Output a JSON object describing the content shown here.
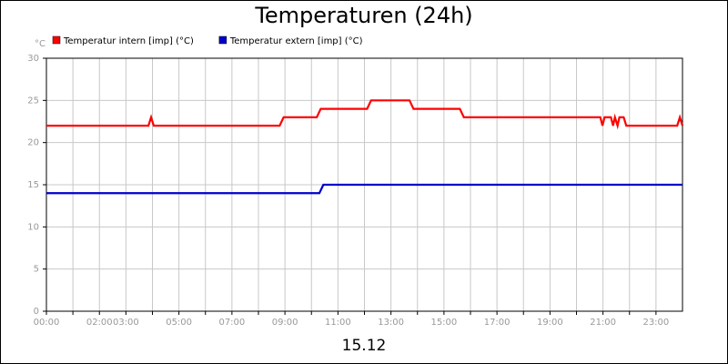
{
  "chart_data": {
    "type": "line",
    "title": "Temperaturen (24h)",
    "x_label": "15.12",
    "y_unit": "°C",
    "xlim": [
      0,
      24
    ],
    "xticks": [
      {
        "value": 0,
        "label": "00:00"
      },
      {
        "value": 2,
        "label": "02:00"
      },
      {
        "value": 3,
        "label": "03:00"
      },
      {
        "value": 5,
        "label": "05:00"
      },
      {
        "value": 7,
        "label": "07:00"
      },
      {
        "value": 9,
        "label": "09:00"
      },
      {
        "value": 11,
        "label": "11:00"
      },
      {
        "value": 13,
        "label": "13:00"
      },
      {
        "value": 15,
        "label": "15:00"
      },
      {
        "value": 17,
        "label": "17:00"
      },
      {
        "value": 19,
        "label": "19:00"
      },
      {
        "value": 21,
        "label": "21:00"
      },
      {
        "value": 23,
        "label": "23:00"
      }
    ],
    "x_minor_grid": [
      1,
      4,
      6,
      8,
      10,
      12,
      14,
      16,
      18,
      20,
      22
    ],
    "ylim": [
      0,
      30
    ],
    "yticks": [
      0,
      5,
      10,
      15,
      20,
      25,
      30
    ],
    "grid": true,
    "legend": "top-left",
    "series": [
      {
        "name": "Temperatur intern [imp] (°C)",
        "color": "#ff0000",
        "x": [
          0,
          3.85,
          3.95,
          4.05,
          8.8,
          8.95,
          10.2,
          10.35,
          12.1,
          12.25,
          13.7,
          13.85,
          15.6,
          15.75,
          20.9,
          20.98,
          21.06,
          21.3,
          21.38,
          21.45,
          21.55,
          21.62,
          21.78,
          21.88,
          23.8,
          23.9,
          24
        ],
        "values": [
          22,
          22,
          23,
          22,
          22,
          23,
          23,
          24,
          24,
          25,
          25,
          24,
          24,
          23,
          23,
          22,
          23,
          23,
          22,
          23,
          22,
          23,
          23,
          22,
          22,
          23,
          22
        ]
      },
      {
        "name": "Temperatur extern [imp] (°C)",
        "color": "#0000cc",
        "x": [
          0,
          10.3,
          10.45,
          24
        ],
        "values": [
          14,
          14,
          15,
          15
        ]
      }
    ]
  }
}
